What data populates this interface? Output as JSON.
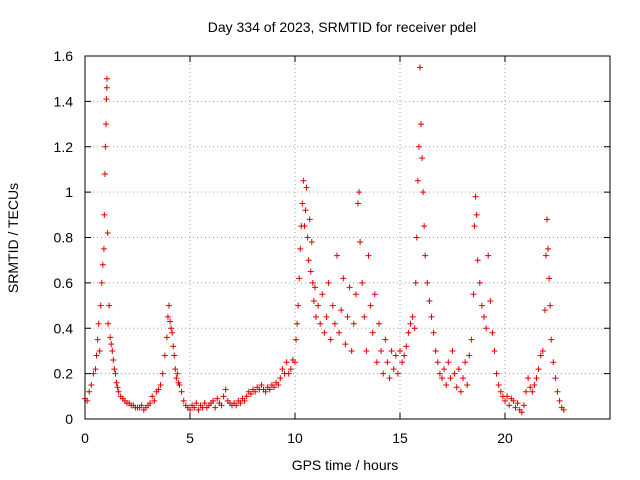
{
  "chart_data": {
    "type": "scatter",
    "title": "Day 334 of 2023, SRMTID for receiver pdel",
    "xlabel": "GPS time / hours",
    "ylabel": "SRMTID / TECUs",
    "xlim": [
      0,
      25
    ],
    "ylim": [
      0,
      1.6
    ],
    "xticks": [
      0,
      5,
      10,
      15,
      20
    ],
    "xtick_labels": [
      "0",
      "5",
      "10",
      "15",
      "20"
    ],
    "yticks": [
      0,
      0.2,
      0.4,
      0.6,
      0.8,
      1,
      1.2,
      1.4,
      1.6
    ],
    "ytick_labels": [
      "0",
      "0.2",
      "0.4",
      "0.6",
      "0.8",
      "1",
      "1.2",
      "1.4",
      "1.6"
    ],
    "grid": true,
    "marker": "plus",
    "series": [
      {
        "name": "SRMTID",
        "color": "#e00000",
        "points": [
          [
            0.0,
            0.09
          ],
          [
            0.1,
            0.08
          ],
          [
            0.2,
            0.12
          ],
          [
            0.3,
            0.15
          ],
          [
            0.4,
            0.2
          ],
          [
            0.5,
            0.22
          ],
          [
            0.55,
            0.28
          ],
          [
            0.6,
            0.35
          ],
          [
            0.65,
            0.42
          ],
          [
            0.7,
            0.3
          ],
          [
            0.75,
            0.5
          ],
          [
            0.8,
            0.6
          ],
          [
            0.85,
            0.68
          ],
          [
            0.9,
            0.75
          ],
          [
            0.92,
            0.9
          ],
          [
            0.95,
            1.08
          ],
          [
            0.97,
            1.2
          ],
          [
            1.0,
            1.3
          ],
          [
            1.02,
            1.41
          ],
          [
            1.04,
            1.46
          ],
          [
            1.05,
            1.5
          ],
          [
            1.08,
            0.82
          ],
          [
            1.1,
            0.42
          ],
          [
            1.15,
            0.5
          ],
          [
            1.2,
            0.36
          ],
          [
            1.25,
            0.33
          ],
          [
            1.3,
            0.3
          ],
          [
            1.35,
            0.26
          ],
          [
            1.4,
            0.22
          ],
          [
            1.45,
            0.2
          ],
          [
            1.5,
            0.16
          ],
          [
            1.55,
            0.14
          ],
          [
            1.6,
            0.12
          ],
          [
            1.7,
            0.1
          ],
          [
            1.8,
            0.09
          ],
          [
            1.9,
            0.08
          ],
          [
            2.0,
            0.07
          ],
          [
            2.1,
            0.07
          ],
          [
            2.2,
            0.06
          ],
          [
            2.3,
            0.06
          ],
          [
            2.4,
            0.05
          ],
          [
            2.5,
            0.05
          ],
          [
            2.6,
            0.05
          ],
          [
            2.7,
            0.06
          ],
          [
            2.8,
            0.04
          ],
          [
            2.9,
            0.05
          ],
          [
            3.0,
            0.06
          ],
          [
            3.1,
            0.07
          ],
          [
            3.2,
            0.1
          ],
          [
            3.3,
            0.08
          ],
          [
            3.4,
            0.12
          ],
          [
            3.5,
            0.13
          ],
          [
            3.6,
            0.15
          ],
          [
            3.7,
            0.2
          ],
          [
            3.8,
            0.28
          ],
          [
            3.9,
            0.36
          ],
          [
            3.95,
            0.45
          ],
          [
            4.0,
            0.5
          ],
          [
            4.05,
            0.43
          ],
          [
            4.1,
            0.4
          ],
          [
            4.15,
            0.38
          ],
          [
            4.2,
            0.32
          ],
          [
            4.25,
            0.28
          ],
          [
            4.3,
            0.22
          ],
          [
            4.35,
            0.18
          ],
          [
            4.4,
            0.2
          ],
          [
            4.45,
            0.16
          ],
          [
            4.5,
            0.15
          ],
          [
            4.6,
            0.12
          ],
          [
            4.7,
            0.08
          ],
          [
            4.8,
            0.06
          ],
          [
            4.9,
            0.05
          ],
          [
            5.0,
            0.04
          ],
          [
            5.1,
            0.06
          ],
          [
            5.2,
            0.05
          ],
          [
            5.3,
            0.07
          ],
          [
            5.4,
            0.04
          ],
          [
            5.5,
            0.06
          ],
          [
            5.6,
            0.05
          ],
          [
            5.7,
            0.07
          ],
          [
            5.8,
            0.05
          ],
          [
            5.9,
            0.06
          ],
          [
            6.0,
            0.07
          ],
          [
            6.1,
            0.08
          ],
          [
            6.2,
            0.05
          ],
          [
            6.3,
            0.09
          ],
          [
            6.4,
            0.07
          ],
          [
            6.5,
            0.06
          ],
          [
            6.6,
            0.1
          ],
          [
            6.7,
            0.13
          ],
          [
            6.8,
            0.08
          ],
          [
            6.9,
            0.07
          ],
          [
            7.0,
            0.06
          ],
          [
            7.1,
            0.07
          ],
          [
            7.2,
            0.06
          ],
          [
            7.3,
            0.08
          ],
          [
            7.4,
            0.07
          ],
          [
            7.5,
            0.09
          ],
          [
            7.6,
            0.08
          ],
          [
            7.7,
            0.1
          ],
          [
            7.8,
            0.12
          ],
          [
            7.9,
            0.11
          ],
          [
            8.0,
            0.13
          ],
          [
            8.1,
            0.12
          ],
          [
            8.2,
            0.14
          ],
          [
            8.3,
            0.13
          ],
          [
            8.4,
            0.15
          ],
          [
            8.5,
            0.13
          ],
          [
            8.6,
            0.12
          ],
          [
            8.7,
            0.14
          ],
          [
            8.8,
            0.13
          ],
          [
            8.9,
            0.15
          ],
          [
            9.0,
            0.14
          ],
          [
            9.1,
            0.16
          ],
          [
            9.2,
            0.15
          ],
          [
            9.3,
            0.18
          ],
          [
            9.4,
            0.22
          ],
          [
            9.5,
            0.2
          ],
          [
            9.6,
            0.25
          ],
          [
            9.7,
            0.2
          ],
          [
            9.8,
            0.22
          ],
          [
            9.9,
            0.26
          ],
          [
            10.0,
            0.25
          ],
          [
            10.05,
            0.35
          ],
          [
            10.1,
            0.42
          ],
          [
            10.15,
            0.5
          ],
          [
            10.2,
            0.62
          ],
          [
            10.25,
            0.75
          ],
          [
            10.3,
            0.85
          ],
          [
            10.35,
            0.95
          ],
          [
            10.4,
            1.05
          ],
          [
            10.45,
            0.85
          ],
          [
            10.5,
            0.92
          ],
          [
            10.55,
            1.02
          ],
          [
            10.6,
            0.8
          ],
          [
            10.65,
            0.7
          ],
          [
            10.7,
            0.88
          ],
          [
            10.75,
            0.65
          ],
          [
            10.8,
            0.78
          ],
          [
            10.85,
            0.6
          ],
          [
            10.9,
            0.52
          ],
          [
            10.95,
            0.58
          ],
          [
            11.0,
            0.45
          ],
          [
            11.1,
            0.5
          ],
          [
            11.2,
            0.42
          ],
          [
            11.3,
            0.55
          ],
          [
            11.4,
            0.38
          ],
          [
            11.5,
            0.45
          ],
          [
            11.6,
            0.6
          ],
          [
            11.7,
            0.35
          ],
          [
            11.8,
            0.5
          ],
          [
            11.9,
            0.42
          ],
          [
            12.0,
            0.72
          ],
          [
            12.1,
            0.38
          ],
          [
            12.2,
            0.48
          ],
          [
            12.3,
            0.62
          ],
          [
            12.4,
            0.33
          ],
          [
            12.5,
            0.45
          ],
          [
            12.6,
            0.58
          ],
          [
            12.7,
            0.3
          ],
          [
            12.8,
            0.42
          ],
          [
            12.9,
            0.55
          ],
          [
            13.0,
            0.95
          ],
          [
            13.05,
            1.0
          ],
          [
            13.1,
            0.78
          ],
          [
            13.2,
            0.6
          ],
          [
            13.3,
            0.45
          ],
          [
            13.4,
            0.3
          ],
          [
            13.5,
            0.72
          ],
          [
            13.6,
            0.5
          ],
          [
            13.7,
            0.38
          ],
          [
            13.8,
            0.55
          ],
          [
            13.9,
            0.25
          ],
          [
            14.0,
            0.42
          ],
          [
            14.1,
            0.3
          ],
          [
            14.2,
            0.2
          ],
          [
            14.3,
            0.35
          ],
          [
            14.4,
            0.25
          ],
          [
            14.5,
            0.18
          ],
          [
            14.6,
            0.3
          ],
          [
            14.7,
            0.22
          ],
          [
            14.8,
            0.28
          ],
          [
            14.9,
            0.2
          ],
          [
            15.0,
            0.3
          ],
          [
            15.1,
            0.25
          ],
          [
            15.2,
            0.28
          ],
          [
            15.3,
            0.32
          ],
          [
            15.4,
            0.38
          ],
          [
            15.5,
            0.42
          ],
          [
            15.6,
            0.45
          ],
          [
            15.7,
            0.4
          ],
          [
            15.75,
            0.6
          ],
          [
            15.8,
            0.8
          ],
          [
            15.85,
            1.05
          ],
          [
            15.9,
            1.2
          ],
          [
            15.95,
            1.55
          ],
          [
            16.0,
            1.3
          ],
          [
            16.05,
            1.15
          ],
          [
            16.1,
            1.0
          ],
          [
            16.15,
            0.85
          ],
          [
            16.2,
            0.72
          ],
          [
            16.3,
            0.6
          ],
          [
            16.4,
            0.52
          ],
          [
            16.5,
            0.45
          ],
          [
            16.6,
            0.38
          ],
          [
            16.7,
            0.3
          ],
          [
            16.8,
            0.25
          ],
          [
            16.9,
            0.2
          ],
          [
            17.0,
            0.18
          ],
          [
            17.1,
            0.22
          ],
          [
            17.2,
            0.15
          ],
          [
            17.3,
            0.25
          ],
          [
            17.4,
            0.18
          ],
          [
            17.5,
            0.3
          ],
          [
            17.6,
            0.2
          ],
          [
            17.7,
            0.14
          ],
          [
            17.8,
            0.22
          ],
          [
            17.9,
            0.12
          ],
          [
            18.0,
            0.18
          ],
          [
            18.1,
            0.25
          ],
          [
            18.2,
            0.15
          ],
          [
            18.3,
            0.28
          ],
          [
            18.4,
            0.35
          ],
          [
            18.5,
            0.55
          ],
          [
            18.55,
            0.85
          ],
          [
            18.6,
            0.98
          ],
          [
            18.65,
            0.9
          ],
          [
            18.7,
            0.7
          ],
          [
            18.8,
            0.6
          ],
          [
            18.9,
            0.5
          ],
          [
            19.0,
            0.45
          ],
          [
            19.1,
            0.4
          ],
          [
            19.2,
            0.72
          ],
          [
            19.3,
            0.52
          ],
          [
            19.4,
            0.38
          ],
          [
            19.5,
            0.3
          ],
          [
            19.6,
            0.2
          ],
          [
            19.7,
            0.15
          ],
          [
            19.8,
            0.12
          ],
          [
            19.9,
            0.1
          ],
          [
            20.0,
            0.08
          ],
          [
            20.1,
            0.1
          ],
          [
            20.2,
            0.06
          ],
          [
            20.3,
            0.09
          ],
          [
            20.4,
            0.08
          ],
          [
            20.5,
            0.05
          ],
          [
            20.6,
            0.07
          ],
          [
            20.7,
            0.04
          ],
          [
            20.8,
            0.03
          ],
          [
            20.9,
            0.06
          ],
          [
            21.0,
            0.12
          ],
          [
            21.1,
            0.18
          ],
          [
            21.2,
            0.14
          ],
          [
            21.3,
            0.12
          ],
          [
            21.4,
            0.15
          ],
          [
            21.5,
            0.18
          ],
          [
            21.6,
            0.22
          ],
          [
            21.7,
            0.28
          ],
          [
            21.8,
            0.3
          ],
          [
            21.9,
            0.48
          ],
          [
            21.95,
            0.72
          ],
          [
            22.0,
            0.88
          ],
          [
            22.05,
            0.75
          ],
          [
            22.1,
            0.62
          ],
          [
            22.15,
            0.5
          ],
          [
            22.2,
            0.35
          ],
          [
            22.3,
            0.25
          ],
          [
            22.4,
            0.18
          ],
          [
            22.5,
            0.12
          ],
          [
            22.6,
            0.08
          ],
          [
            22.7,
            0.05
          ],
          [
            22.8,
            0.04
          ]
        ]
      }
    ]
  }
}
